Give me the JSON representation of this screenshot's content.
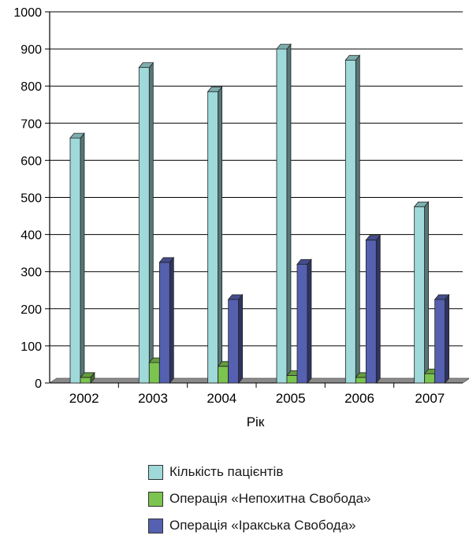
{
  "chart_data": {
    "type": "bar",
    "title": "",
    "xlabel": "Рік",
    "ylabel": "",
    "ylim": [
      0,
      1000
    ],
    "yticks": [
      "0",
      "100",
      "200",
      "300",
      "400",
      "500",
      "600",
      "700",
      "800",
      "900",
      "1000"
    ],
    "grid": true,
    "legend_position": "bottom",
    "categories": [
      "2002",
      "2003",
      "2004",
      "2005",
      "2006",
      "2007"
    ],
    "series": [
      {
        "name": "Кількість пацієнтів",
        "color": "#9fd9d9",
        "values": [
          660,
          850,
          785,
          900,
          870,
          475
        ]
      },
      {
        "name": "Операція «Непохитна Свобода»",
        "color": "#7cc450",
        "values": [
          15,
          55,
          45,
          20,
          15,
          25
        ]
      },
      {
        "name": "Операція «Іракська Свобода»",
        "color": "#5560b0",
        "values": [
          0,
          325,
          225,
          320,
          385,
          225
        ]
      }
    ]
  }
}
